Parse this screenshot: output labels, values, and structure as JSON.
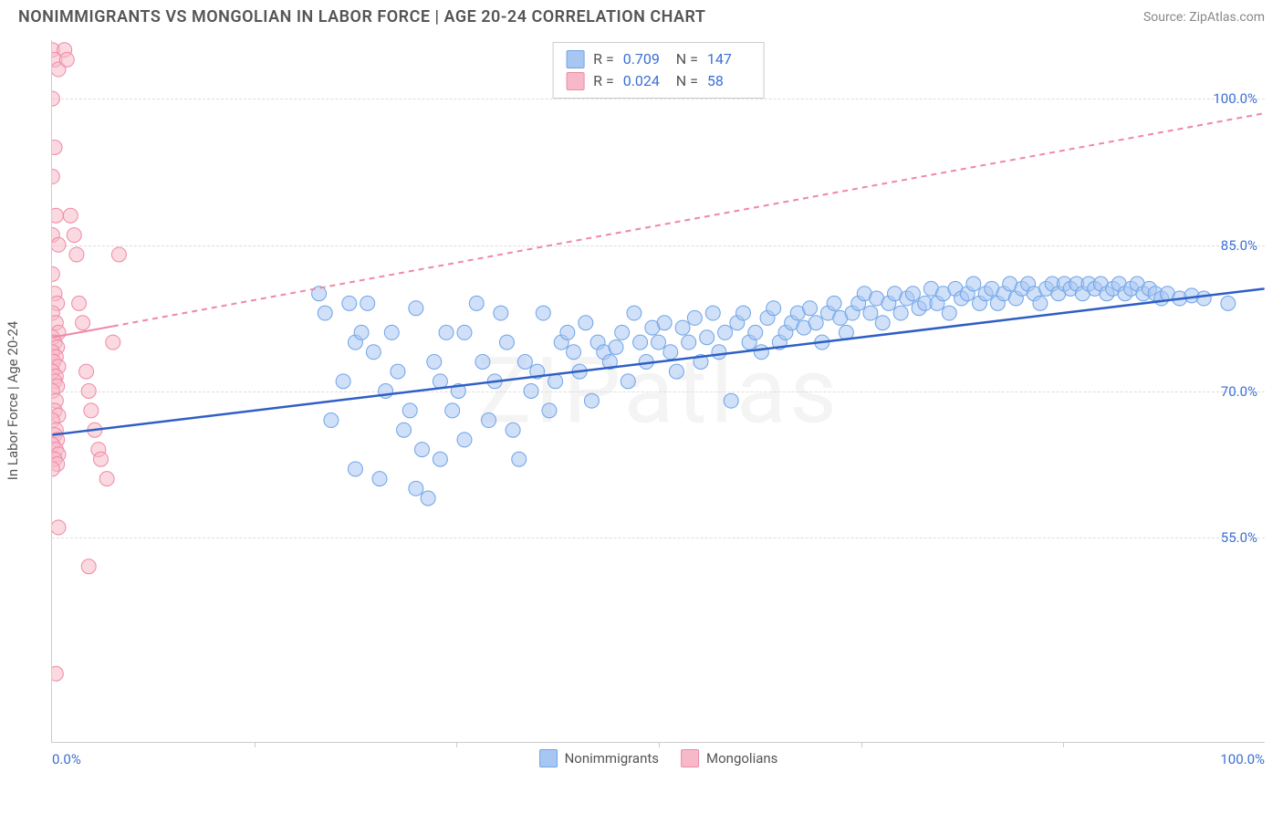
{
  "title": "NONIMMIGRANTS VS MONGOLIAN IN LABOR FORCE | AGE 20-24 CORRELATION CHART",
  "source": "Source: ZipAtlas.com",
  "watermark": "ZIPatlas",
  "ylabel": "In Labor Force | Age 20-24",
  "chart": {
    "type": "scatter",
    "xlim": [
      0,
      100
    ],
    "ylim": [
      34,
      106
    ],
    "xtick_labels": [
      "0.0%",
      "100.0%"
    ],
    "yticks": [
      55.0,
      70.0,
      85.0,
      100.0
    ],
    "ytick_labels": [
      "55.0%",
      "70.0%",
      "85.0%",
      "100.0%"
    ],
    "grid_color": "#dddddd",
    "axis_color": "#cccccc",
    "tick_color": "#3b6fd6",
    "marker_radius": 8,
    "marker_stroke_width": 1,
    "series": [
      {
        "name": "Nonimmigrants",
        "fill": "#a7c7f2",
        "stroke": "#6fa3e8",
        "fill_opacity": 0.55,
        "R": "0.709",
        "N": "147",
        "trend": {
          "x1": 0,
          "y1": 65.5,
          "x2": 100,
          "y2": 80.5,
          "color": "#2f5fc4",
          "width": 2.5,
          "dash": ""
        },
        "points": [
          [
            22,
            80
          ],
          [
            22.5,
            78
          ],
          [
            23,
            67
          ],
          [
            24,
            71
          ],
          [
            24.5,
            79
          ],
          [
            25,
            75
          ],
          [
            25,
            62
          ],
          [
            25.5,
            76
          ],
          [
            26,
            79
          ],
          [
            26.5,
            74
          ],
          [
            27,
            61
          ],
          [
            27.5,
            70
          ],
          [
            28,
            76
          ],
          [
            28.5,
            72
          ],
          [
            29,
            66
          ],
          [
            29.5,
            68
          ],
          [
            30,
            78.5
          ],
          [
            30,
            60
          ],
          [
            30.5,
            64
          ],
          [
            31,
            59
          ],
          [
            31.5,
            73
          ],
          [
            32,
            71
          ],
          [
            32.5,
            76
          ],
          [
            32,
            63
          ],
          [
            33,
            68
          ],
          [
            33.5,
            70
          ],
          [
            34,
            76
          ],
          [
            34,
            65
          ],
          [
            35,
            79
          ],
          [
            35.5,
            73
          ],
          [
            36,
            67
          ],
          [
            36.5,
            71
          ],
          [
            37,
            78
          ],
          [
            37.5,
            75
          ],
          [
            38,
            66
          ],
          [
            38.5,
            63
          ],
          [
            39,
            73
          ],
          [
            39.5,
            70
          ],
          [
            40,
            72
          ],
          [
            40.5,
            78
          ],
          [
            41,
            68
          ],
          [
            41.5,
            71
          ],
          [
            42,
            75
          ],
          [
            42.5,
            76
          ],
          [
            43,
            74
          ],
          [
            43.5,
            72
          ],
          [
            44,
            77
          ],
          [
            44.5,
            69
          ],
          [
            45,
            75
          ],
          [
            45.5,
            74
          ],
          [
            46,
            73
          ],
          [
            46.5,
            74.5
          ],
          [
            47,
            76
          ],
          [
            47.5,
            71
          ],
          [
            48,
            78
          ],
          [
            48.5,
            75
          ],
          [
            49,
            73
          ],
          [
            49.5,
            76.5
          ],
          [
            50,
            75
          ],
          [
            50.5,
            77
          ],
          [
            51,
            74
          ],
          [
            51.5,
            72
          ],
          [
            52,
            76.5
          ],
          [
            52.5,
            75
          ],
          [
            53,
            77.5
          ],
          [
            53.5,
            73
          ],
          [
            54,
            75.5
          ],
          [
            54.5,
            78
          ],
          [
            55,
            74
          ],
          [
            55.5,
            76
          ],
          [
            56,
            69
          ],
          [
            56.5,
            77
          ],
          [
            57,
            78
          ],
          [
            57.5,
            75
          ],
          [
            58,
            76
          ],
          [
            58.5,
            74
          ],
          [
            59,
            77.5
          ],
          [
            59.5,
            78.5
          ],
          [
            60,
            75
          ],
          [
            60.5,
            76
          ],
          [
            61,
            77
          ],
          [
            61.5,
            78
          ],
          [
            62,
            76.5
          ],
          [
            62.5,
            78.5
          ],
          [
            63,
            77
          ],
          [
            63.5,
            75
          ],
          [
            64,
            78
          ],
          [
            64.5,
            79
          ],
          [
            65,
            77.5
          ],
          [
            65.5,
            76
          ],
          [
            66,
            78
          ],
          [
            66.5,
            79
          ],
          [
            67,
            80
          ],
          [
            67.5,
            78
          ],
          [
            68,
            79.5
          ],
          [
            68.5,
            77
          ],
          [
            69,
            79
          ],
          [
            69.5,
            80
          ],
          [
            70,
            78
          ],
          [
            70.5,
            79.5
          ],
          [
            71,
            80
          ],
          [
            71.5,
            78.5
          ],
          [
            72,
            79
          ],
          [
            72.5,
            80.5
          ],
          [
            73,
            79
          ],
          [
            73.5,
            80
          ],
          [
            74,
            78
          ],
          [
            74.5,
            80.5
          ],
          [
            75,
            79.5
          ],
          [
            75.5,
            80
          ],
          [
            76,
            81
          ],
          [
            76.5,
            79
          ],
          [
            77,
            80
          ],
          [
            77.5,
            80.5
          ],
          [
            78,
            79
          ],
          [
            78.5,
            80
          ],
          [
            79,
            81
          ],
          [
            79.5,
            79.5
          ],
          [
            80,
            80.5
          ],
          [
            80.5,
            81
          ],
          [
            81,
            80
          ],
          [
            81.5,
            79
          ],
          [
            82,
            80.5
          ],
          [
            82.5,
            81
          ],
          [
            83,
            80
          ],
          [
            83.5,
            81
          ],
          [
            84,
            80.5
          ],
          [
            84.5,
            81
          ],
          [
            85,
            80
          ],
          [
            85.5,
            81
          ],
          [
            86,
            80.5
          ],
          [
            86.5,
            81
          ],
          [
            87,
            80
          ],
          [
            87.5,
            80.5
          ],
          [
            88,
            81
          ],
          [
            88.5,
            80
          ],
          [
            89,
            80.5
          ],
          [
            89.5,
            81
          ],
          [
            90,
            80
          ],
          [
            90.5,
            80.5
          ],
          [
            91,
            80
          ],
          [
            91.5,
            79.5
          ],
          [
            92,
            80
          ],
          [
            93,
            79.5
          ],
          [
            94,
            79.8
          ],
          [
            95,
            79.5
          ],
          [
            97,
            79
          ]
        ]
      },
      {
        "name": "Mongolians",
        "fill": "#f7b9c9",
        "stroke": "#ef88a5",
        "fill_opacity": 0.55,
        "R": "0.024",
        "N": "58",
        "trend": {
          "x1": 0,
          "y1": 75.5,
          "x2": 100,
          "y2": 98.5,
          "color": "#ef88a5",
          "width": 2,
          "dash": "6,5",
          "solid_until": 5
        },
        "points": [
          [
            0,
            105
          ],
          [
            0.2,
            104
          ],
          [
            0.5,
            103
          ],
          [
            0,
            100
          ],
          [
            0.2,
            95
          ],
          [
            0,
            92
          ],
          [
            0.3,
            88
          ],
          [
            0,
            86
          ],
          [
            0.5,
            85
          ],
          [
            0,
            82
          ],
          [
            0.2,
            80
          ],
          [
            0.4,
            79
          ],
          [
            0,
            78
          ],
          [
            0.3,
            77
          ],
          [
            0.5,
            76
          ],
          [
            0,
            75.5
          ],
          [
            0.2,
            75
          ],
          [
            0.4,
            74.5
          ],
          [
            0,
            74
          ],
          [
            0.3,
            73.5
          ],
          [
            0.1,
            73
          ],
          [
            0.5,
            72.5
          ],
          [
            0,
            72
          ],
          [
            0.3,
            71.5
          ],
          [
            0.2,
            71
          ],
          [
            0.4,
            70.5
          ],
          [
            0,
            70
          ],
          [
            0.3,
            69
          ],
          [
            0.2,
            68
          ],
          [
            0.5,
            67.5
          ],
          [
            0,
            67
          ],
          [
            0.3,
            66
          ],
          [
            0.2,
            65.5
          ],
          [
            0.4,
            65
          ],
          [
            0,
            64.5
          ],
          [
            0.3,
            64
          ],
          [
            0.5,
            63.5
          ],
          [
            0.2,
            63
          ],
          [
            0.4,
            62.5
          ],
          [
            0,
            62
          ],
          [
            1,
            105
          ],
          [
            1.2,
            104
          ],
          [
            1.5,
            88
          ],
          [
            1.8,
            86
          ],
          [
            2,
            84
          ],
          [
            2.2,
            79
          ],
          [
            2.5,
            77
          ],
          [
            2.8,
            72
          ],
          [
            3,
            70
          ],
          [
            3.2,
            68
          ],
          [
            3.5,
            66
          ],
          [
            3.8,
            64
          ],
          [
            4,
            63
          ],
          [
            4.5,
            61
          ],
          [
            5,
            75
          ],
          [
            5.5,
            84
          ],
          [
            0.5,
            56
          ],
          [
            3,
            52
          ],
          [
            0.3,
            41
          ]
        ]
      }
    ]
  }
}
